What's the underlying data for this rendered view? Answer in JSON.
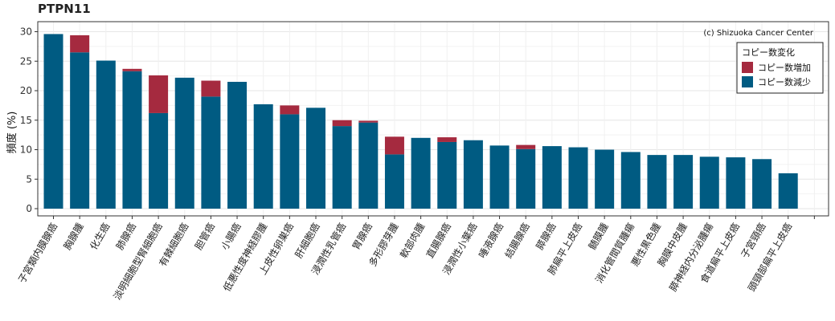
{
  "title": "PTPN11",
  "credit": "(c) Shizuoka Cancer Center",
  "legend": {
    "title": "コピー数変化",
    "items": [
      {
        "label": "コピー数増加",
        "color": "#a52a3f"
      },
      {
        "label": "コピー数減少",
        "color": "#005b82"
      }
    ]
  },
  "chart_data": {
    "type": "bar",
    "stacked": true,
    "title": "PTPN11",
    "xlabel": "",
    "ylabel": "頻度 (%)",
    "ylim": [
      0,
      31
    ],
    "yticks": [
      0,
      5,
      10,
      15,
      20,
      25,
      30
    ],
    "grid": true,
    "legend_position": "top-right",
    "categories": [
      "子宮類内膜腺癌",
      "胸腺腫",
      "化生癌",
      "肺腺癌",
      "淡明細胞型腎細胞癌",
      "有棘細胞癌",
      "胆管癌",
      "小腸癌",
      "低悪性度神経膠腫",
      "上皮性卵巣癌",
      "肝細胞癌",
      "浸潤性乳管癌",
      "胃腺癌",
      "多形膠芽腫",
      "軟部肉腫",
      "直腸腺癌",
      "浸潤性小葉癌",
      "唾液腺癌",
      "結腸腺癌",
      "膵腺癌",
      "肺扁平上皮癌",
      "髄膜腫",
      "消化管間質腫瘍",
      "悪性黒色腫",
      "胸膜中皮腫",
      "膵神経内分泌腫瘍",
      "食道扁平上皮癌",
      "子宮頸癌",
      "頭頸部扁平上皮癌"
    ],
    "series": [
      {
        "name": "コピー数減少",
        "color": "#005b82",
        "values": [
          29.6,
          26.5,
          25.1,
          23.3,
          16.2,
          22.2,
          19.0,
          21.5,
          17.7,
          16.0,
          17.1,
          14.0,
          14.6,
          9.2,
          12.0,
          11.3,
          11.6,
          10.7,
          10.1,
          10.6,
          10.4,
          10.0,
          9.6,
          9.1,
          9.1,
          8.8,
          8.7,
          8.4,
          6.0
        ]
      },
      {
        "name": "コピー数増加",
        "color": "#a52a3f",
        "values": [
          0.0,
          2.9,
          0.0,
          0.4,
          6.4,
          0.0,
          2.7,
          0.0,
          0.0,
          1.5,
          0.0,
          1.0,
          0.3,
          3.0,
          0.0,
          0.8,
          0.0,
          0.0,
          0.7,
          0.0,
          0.0,
          0.0,
          0.0,
          0.0,
          0.0,
          0.0,
          0.0,
          0.0,
          0.0
        ]
      }
    ]
  }
}
